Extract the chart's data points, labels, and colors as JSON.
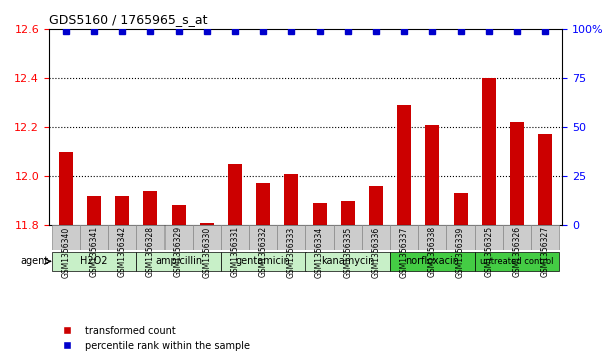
{
  "title": "GDS5160 / 1765965_s_at",
  "samples": [
    "GSM1356340",
    "GSM1356341",
    "GSM1356342",
    "GSM1356328",
    "GSM1356329",
    "GSM1356330",
    "GSM1356331",
    "GSM1356332",
    "GSM1356333",
    "GSM1356334",
    "GSM1356335",
    "GSM1356336",
    "GSM1356337",
    "GSM1356338",
    "GSM1356339",
    "GSM1356325",
    "GSM1356326",
    "GSM1356327"
  ],
  "red_values": [
    12.1,
    11.92,
    11.92,
    11.94,
    11.88,
    11.81,
    12.05,
    11.97,
    12.01,
    11.89,
    11.9,
    11.96,
    12.29,
    12.21,
    11.93,
    12.4,
    12.22,
    12.17
  ],
  "blue_values": [
    99,
    99,
    99,
    99,
    99,
    99,
    99,
    99,
    99,
    99,
    99,
    99,
    99,
    99,
    99,
    99,
    99,
    99
  ],
  "groups": [
    {
      "label": "H2O2",
      "start": 0,
      "end": 3,
      "color": "#d6f5d6"
    },
    {
      "label": "ampicillin",
      "start": 3,
      "end": 6,
      "color": "#d6f5d6"
    },
    {
      "label": "gentamicin",
      "start": 6,
      "end": 9,
      "color": "#d6f5d6"
    },
    {
      "label": "kanamycin",
      "start": 9,
      "end": 12,
      "color": "#d6f5d6"
    },
    {
      "label": "norfloxacin",
      "start": 12,
      "end": 15,
      "color": "#5cd65c"
    },
    {
      "label": "untreated control",
      "start": 15,
      "end": 18,
      "color": "#5cd65c"
    }
  ],
  "ylim_left": [
    11.8,
    12.6
  ],
  "ylim_right": [
    0,
    100
  ],
  "yticks_left": [
    11.8,
    12.0,
    12.2,
    12.4,
    12.6
  ],
  "yticks_right": [
    0,
    25,
    50,
    75,
    100
  ],
  "ytick_right_labels": [
    "0",
    "25",
    "50",
    "75",
    "100%"
  ],
  "bar_color": "#cc0000",
  "dot_color": "#0000cc",
  "bar_bottom": 11.8,
  "legend_red": "transformed count",
  "legend_blue": "percentile rank within the sample",
  "agent_label": "agent",
  "background_color": "#e0e0e0"
}
